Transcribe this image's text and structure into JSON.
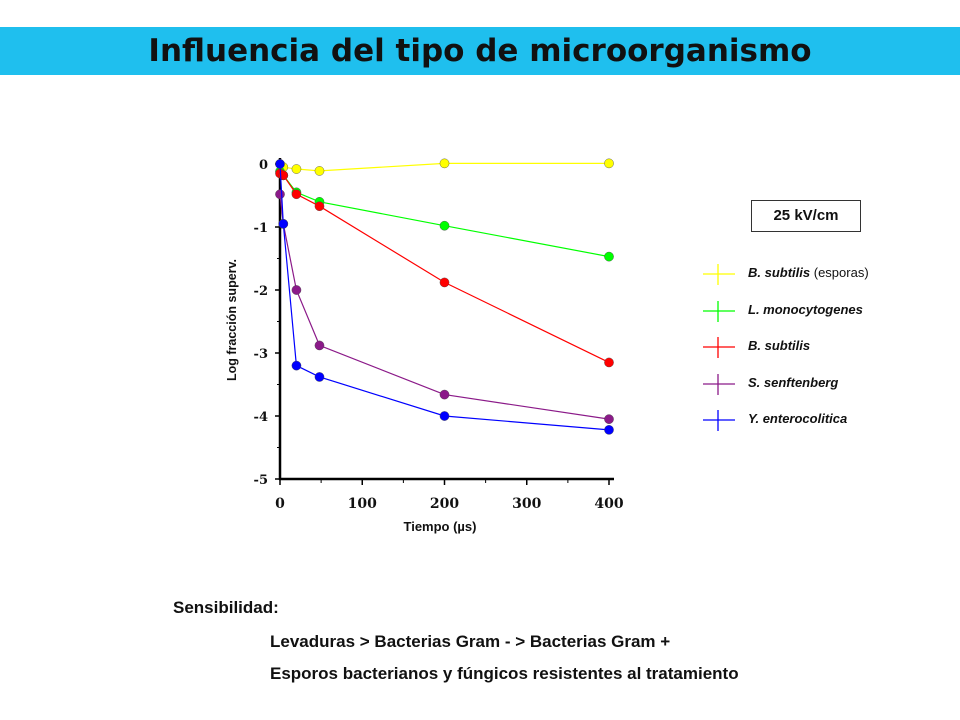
{
  "title": "Influencia del tipo de microorganismo",
  "condition_label": "25 kV/cm",
  "chart_data": {
    "type": "line",
    "xlabel": "Tiempo (µs)",
    "ylabel": "Log fracción superv.",
    "xlim": [
      0,
      400
    ],
    "ylim": [
      -5,
      0
    ],
    "xticks": [
      0,
      100,
      200,
      300,
      400
    ],
    "xtick_labels": [
      "0",
      "100",
      "200",
      "300",
      "400"
    ],
    "yticks": [
      0,
      -1,
      -2,
      -3,
      -4,
      -5
    ],
    "ytick_labels": [
      "0",
      "-1",
      "-2",
      "-3",
      "-4",
      "-5"
    ],
    "grid": false,
    "legend_position": "right",
    "series": [
      {
        "name": "B. subtilis",
        "note": "(esporas)",
        "color": "#ffff00",
        "x": [
          0,
          4,
          20,
          48,
          200,
          400
        ],
        "y": [
          0,
          -0.05,
          -0.08,
          -0.11,
          0.01,
          0.01
        ]
      },
      {
        "name": "L.  monocytogenes",
        "color": "#00ff00",
        "x": [
          0,
          4,
          20,
          48,
          200,
          400
        ],
        "y": [
          -0.12,
          -0.18,
          -0.45,
          -0.6,
          -0.98,
          -1.47
        ]
      },
      {
        "name": "B. subtilis",
        "color": "#ff0000",
        "x": [
          0,
          4,
          20,
          48,
          200,
          400
        ],
        "y": [
          -0.15,
          -0.18,
          -0.48,
          -0.67,
          -1.88,
          -3.15
        ]
      },
      {
        "name": "S. senftenberg",
        "color": "#8b1a89",
        "x": [
          0,
          4,
          20,
          48,
          200,
          400
        ],
        "y": [
          -0.48,
          -0.95,
          -2.0,
          -2.88,
          -3.66,
          -4.05
        ]
      },
      {
        "name": "Y. enterocolitica",
        "color": "#0000ff",
        "x": [
          0,
          4,
          20,
          48,
          200,
          400
        ],
        "y": [
          0,
          -0.95,
          -3.2,
          -3.38,
          -4.0,
          -4.22
        ]
      }
    ]
  },
  "sensitivity": {
    "title": "Sensibilidad:",
    "line1": "Levaduras  > Bacterias Gram -  > Bacterias Gram +",
    "line2": "Esporos bacterianos y fúngicos resistentes al tratamiento"
  }
}
